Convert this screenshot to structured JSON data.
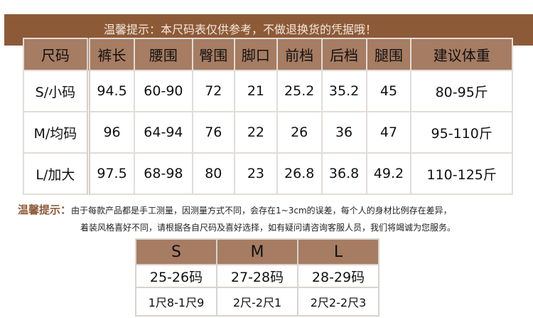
{
  "banner": "温馨提示：本尺码表仅供参考，不做退换货的凭据哦！",
  "size_table": {
    "headers": [
      "尺码",
      "裤长",
      "腰围",
      "臀围",
      "脚口",
      "前档",
      "后档",
      "腿围",
      "建议体重"
    ],
    "rows": [
      [
        "S/小码",
        "94.5",
        "60-90",
        "72",
        "21",
        "25.2",
        "35.2",
        "45",
        "80-95斤"
      ],
      [
        "M/均码",
        "96",
        "64-94",
        "76",
        "22",
        "26",
        "36",
        "47",
        "95-110斤"
      ],
      [
        "L/加大",
        "97.5",
        "68-98",
        "80",
        "23",
        "26.8",
        "36.8",
        "49.2",
        "110-125斤"
      ]
    ]
  },
  "note": {
    "label": "温馨提示：",
    "line1": "由于每款产品都是手工测量，因测量方式不同，会存在1~3cm的误差，每个人的身材比例存在差异，",
    "line2": "着装风格喜好不同，请根据各自尺码及喜好选择，如有疑问请咨询客服人员，我们将竭诚为您服务。"
  },
  "conversion_table": {
    "headers": [
      "S",
      "M",
      "L"
    ],
    "codes": [
      "25-26码",
      "27-28码",
      "28-29码"
    ],
    "waist": [
      "1尺8-1尺9",
      "2尺-2尺1",
      "2尺2-2尺3"
    ]
  }
}
